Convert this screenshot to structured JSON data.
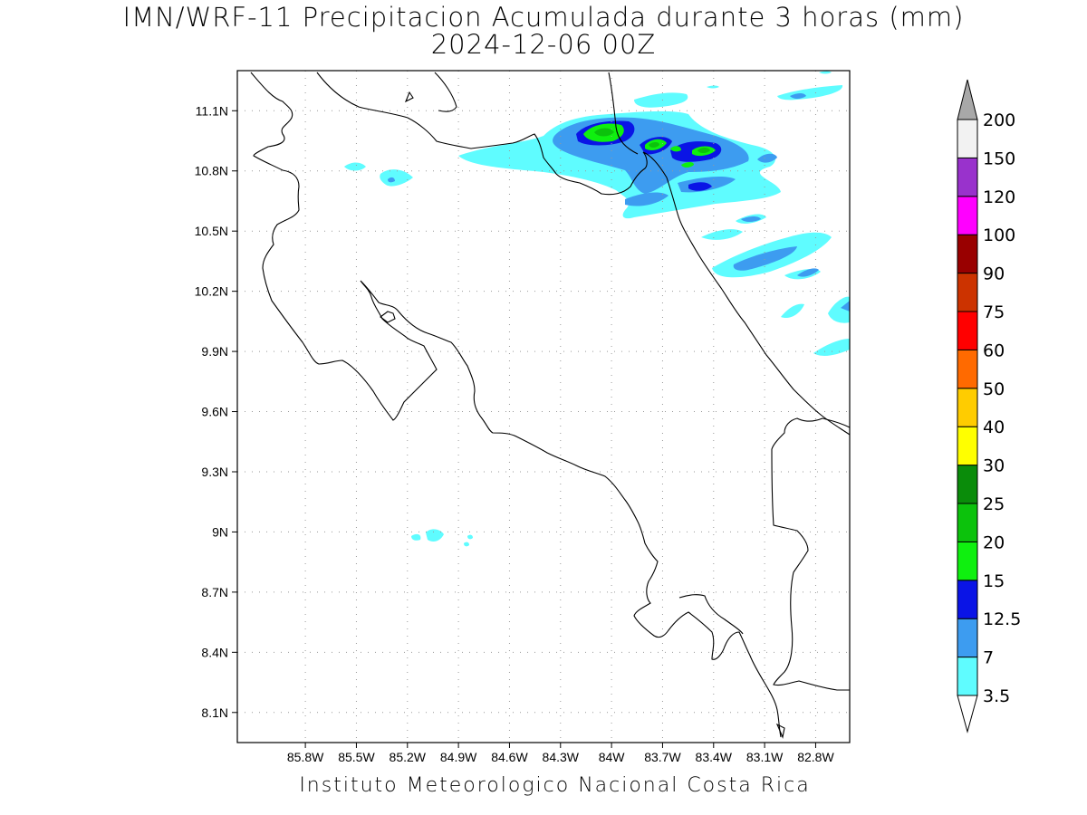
{
  "title": {
    "line1": "IMN/WRF-11 Precipitacion Acumulada durante 3 horas (mm)",
    "line2": "2024-12-06 00Z"
  },
  "footer": "Instituto Meteorologico Nacional Costa Rica",
  "map": {
    "lon_range": [
      -86.2,
      -82.6
    ],
    "lat_range": [
      7.95,
      11.3
    ],
    "lat_ticks": [
      {
        "value": 11.1,
        "label": "11.1N"
      },
      {
        "value": 10.8,
        "label": "10.8N"
      },
      {
        "value": 10.5,
        "label": "10.5N"
      },
      {
        "value": 10.2,
        "label": "10.2N"
      },
      {
        "value": 9.9,
        "label": "9.9N"
      },
      {
        "value": 9.6,
        "label": "9.6N"
      },
      {
        "value": 9.3,
        "label": "9.3N"
      },
      {
        "value": 9.0,
        "label": "9N"
      },
      {
        "value": 8.7,
        "label": "8.7N"
      },
      {
        "value": 8.4,
        "label": "8.4N"
      },
      {
        "value": 8.1,
        "label": "8.1N"
      }
    ],
    "lon_ticks": [
      {
        "value": -85.8,
        "label": "85.8W"
      },
      {
        "value": -85.5,
        "label": "85.5W"
      },
      {
        "value": -85.2,
        "label": "85.2W"
      },
      {
        "value": -84.9,
        "label": "84.9W"
      },
      {
        "value": -84.6,
        "label": "84.6W"
      },
      {
        "value": -84.3,
        "label": "84.3W"
      },
      {
        "value": -84.0,
        "label": "84W"
      },
      {
        "value": -83.7,
        "label": "83.7W"
      },
      {
        "value": -83.4,
        "label": "83.4W"
      },
      {
        "value": -83.1,
        "label": "83.1W"
      },
      {
        "value": -82.8,
        "label": "82.8W"
      }
    ],
    "grid": true
  },
  "colorbar": {
    "labels": [
      "3.5",
      "7",
      "12.5",
      "15",
      "20",
      "25",
      "30",
      "40",
      "50",
      "60",
      "75",
      "90",
      "100",
      "120",
      "150",
      "200"
    ],
    "colors": [
      "#5ffcff",
      "#3d9cf0",
      "#0a14e6",
      "#0ff00f",
      "#0cc20c",
      "#0a8c0a",
      "#ffff00",
      "#ffcc00",
      "#ff6a00",
      "#ff0000",
      "#cc3300",
      "#990000",
      "#ff00ff",
      "#9932cc",
      "#f2f2f2"
    ],
    "top_arrow_color": "#a8a8a8",
    "bottom_arrow_color": "#ffffff"
  }
}
